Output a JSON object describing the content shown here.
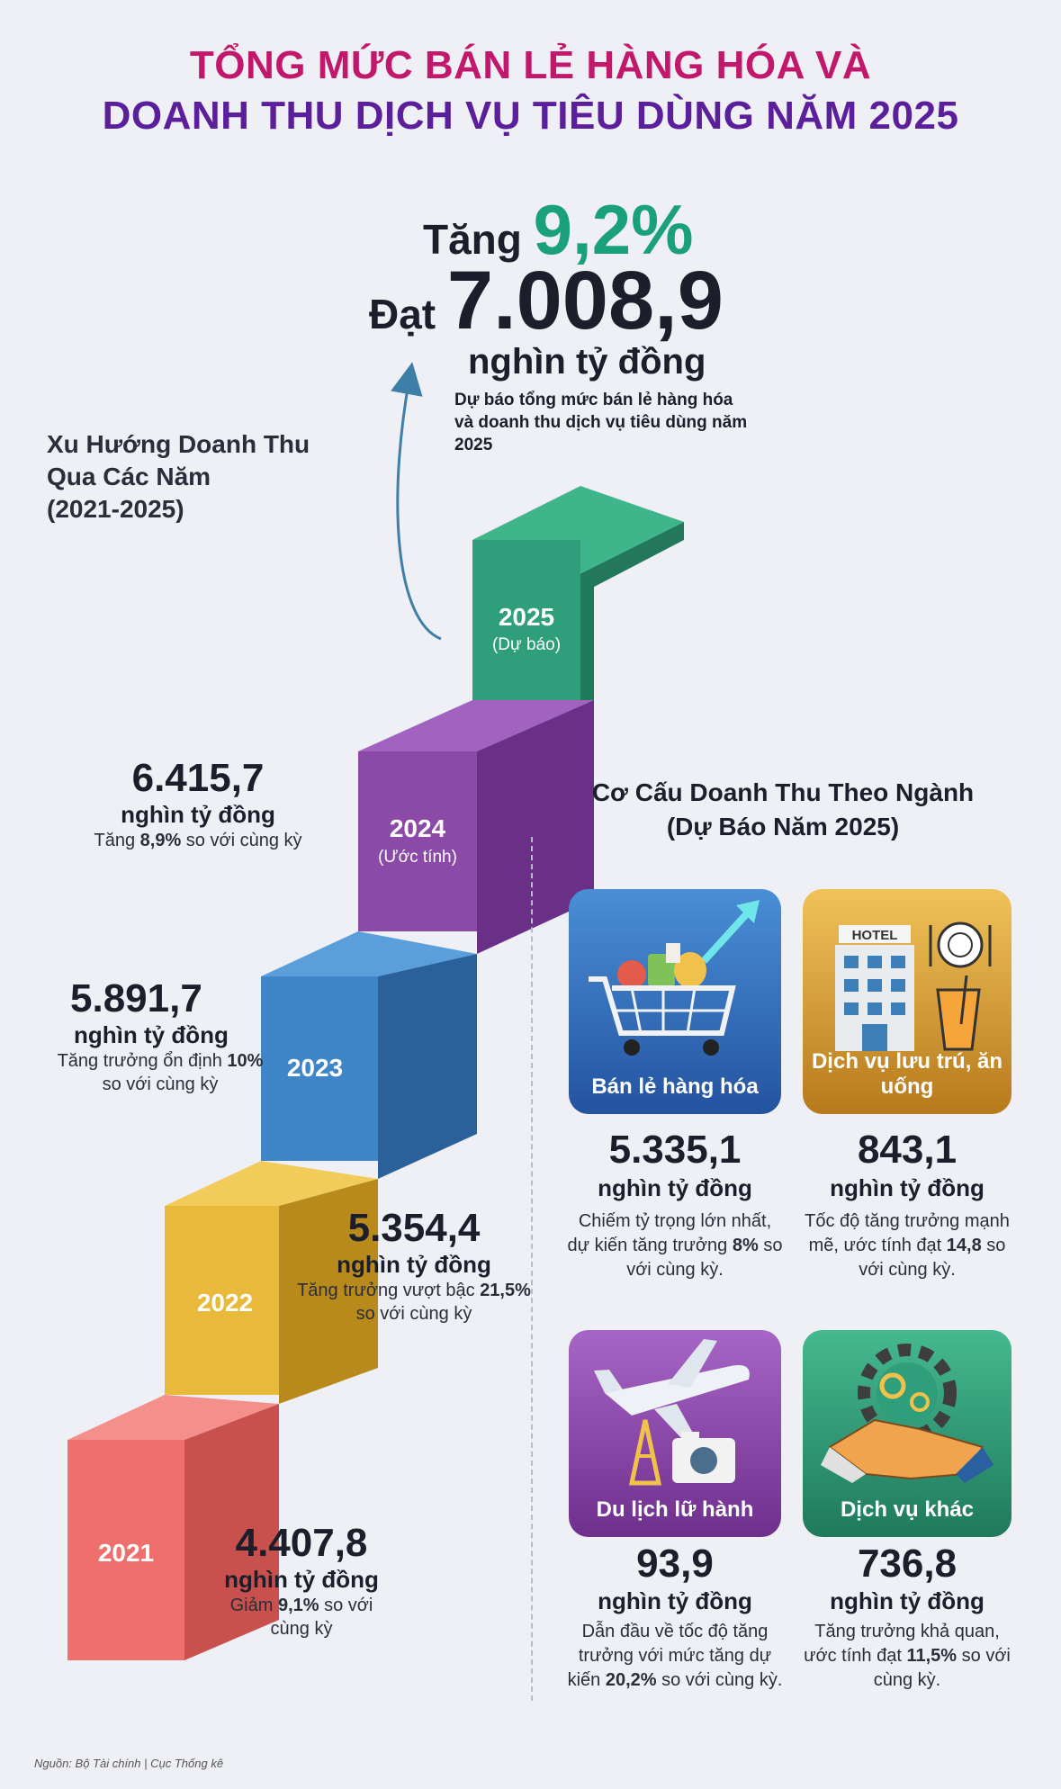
{
  "header": {
    "title_line1": "TỔNG MỨC BÁN LẺ HÀNG HÓA VÀ",
    "title_line2": "DOANH THU DỊCH VỤ TIÊU DÙNG NĂM 2025"
  },
  "highlight": {
    "increase_prefix": "Tăng",
    "increase_pct": "9,2%",
    "reach_prefix": "Đạt",
    "reach_value": "7.008,9",
    "unit": "nghìn tỷ đồng",
    "note": "Dự báo tổng mức bán lẻ hàng hóa và doanh thu dịch vụ tiêu dùng năm 2025"
  },
  "trend": {
    "title_line1": "Xu Hướng Doanh Thu",
    "title_line2": "Qua Các Năm",
    "title_line3": "(2021-2025)",
    "years": [
      {
        "label": "2021",
        "sub": "",
        "color": "#ef6f6c",
        "value": "4.407,8",
        "unit": "nghìn tỷ đồng",
        "note_a": "Giảm ",
        "note_b": "9,1%",
        "note_c": " so với cùng kỳ"
      },
      {
        "label": "2022",
        "sub": "",
        "color": "#e8b93a",
        "value": "5.354,4",
        "unit": "nghìn tỷ đồng",
        "note_a": "Tăng trưởng vượt bậc ",
        "note_b": "21,5%",
        "note_c": " so với cùng kỳ"
      },
      {
        "label": "2023",
        "sub": "",
        "color": "#3f86c9",
        "value": "5.891,7",
        "unit": "nghìn tỷ đồng",
        "note_a": "Tăng trưởng ổn định ",
        "note_b": "10%",
        "note_c": " so với cùng kỳ"
      },
      {
        "label": "2024",
        "sub": "(Ước tính)",
        "color": "#8b4aa8",
        "value": "6.415,7",
        "unit": "nghìn tỷ đồng",
        "note_a": "Tăng ",
        "note_b": "8,9%",
        "note_c": " so với cùng kỳ"
      },
      {
        "label": "2025",
        "sub": "(Dự báo)",
        "color": "#2f9e7a"
      }
    ]
  },
  "sectors": {
    "title_line1": "Cơ Cấu Doanh Thu Theo Ngành",
    "title_line2": "(Dự Báo Năm 2025)",
    "items": [
      {
        "label": "Bán lẻ hàng hóa",
        "icon": "shopping-cart-icon",
        "color": "#2f6db5",
        "value": "5.335,1",
        "unit": "nghìn tỷ đồng",
        "note_a": "Chiếm tỷ trọng lớn nhất, dự kiến tăng trưởng ",
        "note_b": "8%",
        "note_c": " so với cùng kỳ."
      },
      {
        "label": "Dịch vụ lưu trú, ăn uống",
        "icon": "hotel-icon",
        "hotel_sign": "HOTEL",
        "color": "#d9a231",
        "value": "843,1",
        "unit": "nghìn tỷ đồng",
        "note_a": "Tốc độ tăng trưởng mạnh mẽ, ước tính đạt ",
        "note_b": "14,8",
        "note_c": " so với cùng kỳ."
      },
      {
        "label": "Du lịch lữ hành",
        "icon": "airplane-icon",
        "color": "#8a45a6",
        "value": "93,9",
        "unit": "nghìn tỷ đồng",
        "note_a": "Dẫn đầu về tốc độ tăng trưởng với mức tăng dự kiến ",
        "note_b": "20,2%",
        "note_c": " so với cùng kỳ."
      },
      {
        "label": "Dịch vụ khác",
        "icon": "handshake-icon",
        "color": "#2e9d78",
        "value": "736,8",
        "unit": "nghìn tỷ đồng",
        "note_a": "Tăng trưởng khả quan, ước tính đạt ",
        "note_b": "11,5%",
        "note_c": " so với cùng kỳ."
      }
    ]
  },
  "footer": {
    "source": "Nguồn: Bộ Tài chính | Cục Thống kê"
  }
}
